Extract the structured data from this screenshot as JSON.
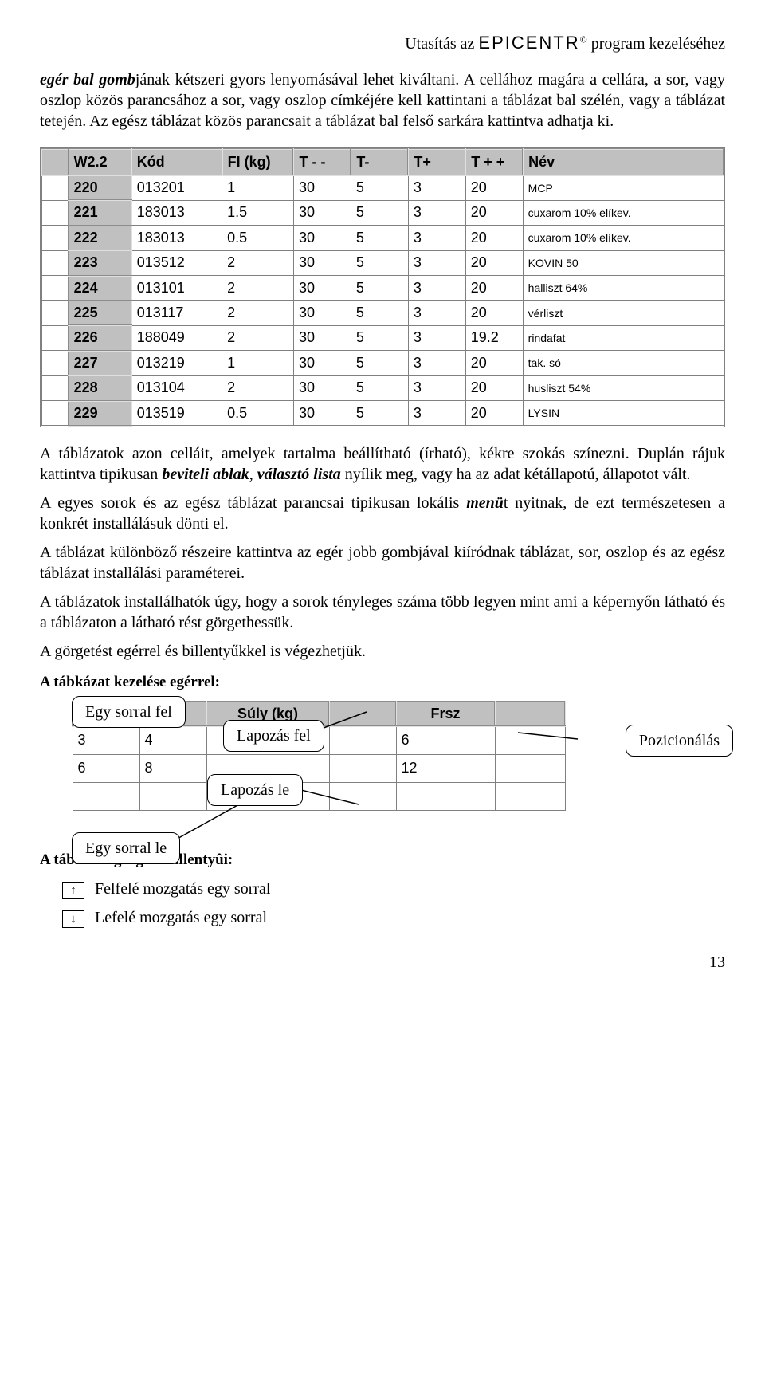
{
  "header": {
    "pre": "Utasítás az ",
    "brand": "EPICENTR",
    "sup": "©",
    "post": " program kezeléséhez"
  },
  "para1": {
    "seg1": "egér bal gomb",
    "seg2": "jának kétszeri gyors lenyomásával lehet kiváltani. A cellához magára a cellára, a sor, vagy oszlop közös parancsához a sor, vagy oszlop címkéjére kell kattintani a táblázat bal szélén, vagy a táblázat tetején. Az egész táblázat közös parancsait a táblázat bal felső sarkára kattintva adhatja ki."
  },
  "table1": {
    "headers": [
      "W2.2",
      "Kód",
      "FI (kg)",
      "T - -",
      "T-",
      "T+",
      "T + +",
      "Név"
    ],
    "rows": [
      [
        "220",
        "013201",
        "1",
        "30",
        "5",
        "3",
        "20",
        "MCP"
      ],
      [
        "221",
        "183013",
        "1.5",
        "30",
        "5",
        "3",
        "20",
        "cuxarom 10% elíkev."
      ],
      [
        "222",
        "183013",
        "0.5",
        "30",
        "5",
        "3",
        "20",
        "cuxarom 10% elíkev."
      ],
      [
        "223",
        "013512",
        "2",
        "30",
        "5",
        "3",
        "20",
        "KOVIN 50"
      ],
      [
        "224",
        "013101",
        "2",
        "30",
        "5",
        "3",
        "20",
        "halliszt 64%"
      ],
      [
        "225",
        "013117",
        "2",
        "30",
        "5",
        "3",
        "20",
        "vérliszt"
      ],
      [
        "226",
        "188049",
        "2",
        "30",
        "5",
        "3",
        "19.2",
        "rindafat"
      ],
      [
        "227",
        "013219",
        "1",
        "30",
        "5",
        "3",
        "20",
        "tak. só"
      ],
      [
        "228",
        "013104",
        "2",
        "30",
        "5",
        "3",
        "20",
        "husliszt 54%"
      ],
      [
        "229",
        "013519",
        "0.5",
        "30",
        "5",
        "3",
        "20",
        "LYSIN"
      ]
    ]
  },
  "para2": {
    "seg1": "A táblázatok azon celláit, amelyek tartalma beállítható (írható), kékre szokás színezni. Duplán rájuk kattintva tipikusan ",
    "seg2": "beviteli ablak",
    "seg3": ", ",
    "seg4": "választó lista",
    "seg5": " nyílik meg, vagy ha az adat kétállapotú, állapotot vált."
  },
  "para3": {
    "seg1": "A egyes sorok és az egész táblázat parancsai tipikusan lokális ",
    "seg2": "menü",
    "seg3": "t nyitnak, de ezt természetesen a konkrét installálásuk dönti el."
  },
  "para4": "A táblázat különböző részeire kattintva az egér jobb gombjával kiíródnak táblázat, sor, oszlop és az egész táblázat installálási paraméterei.",
  "para5": "A táblázatok installálhatók úgy, hogy a sorok tényleges száma több legyen mint ami a képernyőn látható és a táblázaton a látható rést görgethessük.",
  "para6": "A görgetést egérrel és billentyűkkel is végezhetjük.",
  "sub1": "A tábkázat kezelése egérrel:",
  "callouts": {
    "up1": "Egy sorral fel",
    "pgup": "Lapozás fel",
    "pgdn": "Lapozás le",
    "down1": "Egy sorral le",
    "pos": "Pozicionálás"
  },
  "ctrl_table": {
    "headers": [
      "",
      "",
      "Súly (kg)",
      "",
      "Frsz",
      ""
    ],
    "rows": [
      [
        "3",
        "4",
        "",
        "",
        "6",
        ""
      ],
      [
        "6",
        "8",
        "",
        "",
        "12",
        ""
      ],
      [
        "",
        "",
        "",
        "",
        "",
        ""
      ]
    ]
  },
  "sub2": "A tábkázat görgetô billentyûi:",
  "keys": {
    "up_glyph": "↑",
    "up_text": "Felfelé mozgatás egy sorral",
    "down_glyph": "↓",
    "down_text": "Lefelé mozgatás egy sorral"
  },
  "pagenum": "13"
}
